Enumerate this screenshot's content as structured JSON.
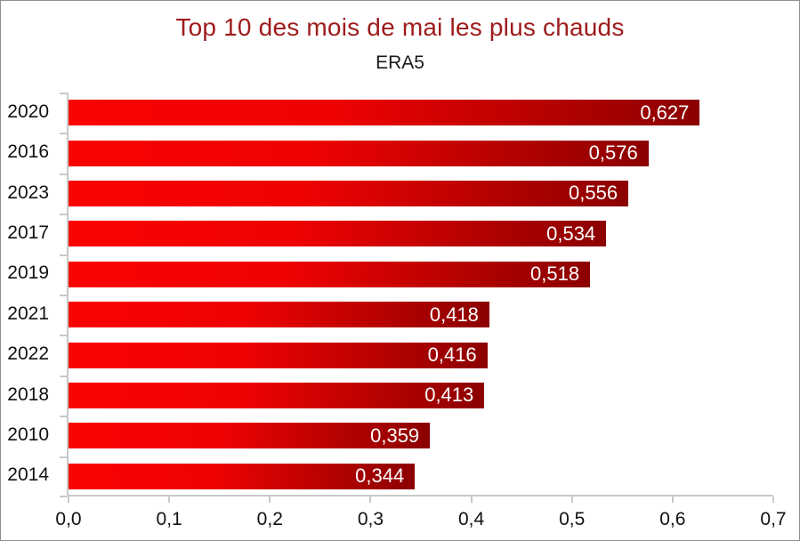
{
  "header": {
    "title": "Top 10 des mois de mai les plus chauds",
    "subtitle": "ERA5"
  },
  "colors": {
    "title_text": "#9e1b1b",
    "subtitle_text": "#1a1a1a",
    "bar_gradient_start": "#fb0202",
    "bar_gradient_end": "#8b0000",
    "bar_value_text": "#ffffff",
    "axis_line": "#c9c9c9",
    "axis_label_text": "#111111",
    "frame_border": "#8c918c",
    "background": "#ffffff"
  },
  "chart_data": {
    "type": "bar",
    "orientation": "horizontal",
    "title": "Top 10 des mois de mai les plus chauds",
    "subtitle": "ERA5",
    "categories": [
      "2020",
      "2016",
      "2023",
      "2017",
      "2019",
      "2021",
      "2022",
      "2018",
      "2010",
      "2014"
    ],
    "values": [
      0.627,
      0.576,
      0.556,
      0.534,
      0.518,
      0.418,
      0.416,
      0.413,
      0.359,
      0.344
    ],
    "value_labels": [
      "0,627",
      "0,576",
      "0,556",
      "0,534",
      "0,518",
      "0,418",
      "0,416",
      "0,413",
      "0,359",
      "0,344"
    ],
    "xlim": [
      0,
      0.7
    ],
    "x_tick_values": [
      0.0,
      0.1,
      0.2,
      0.3,
      0.4,
      0.5,
      0.6,
      0.7
    ],
    "x_tick_labels": [
      "0,0",
      "0,1",
      "0,2",
      "0,3",
      "0,4",
      "0,5",
      "0,6",
      "0,7"
    ],
    "xlabel": "",
    "ylabel": "",
    "grid": false,
    "legend": null,
    "value_label_position": "inside-end",
    "decimal_separator": ","
  }
}
